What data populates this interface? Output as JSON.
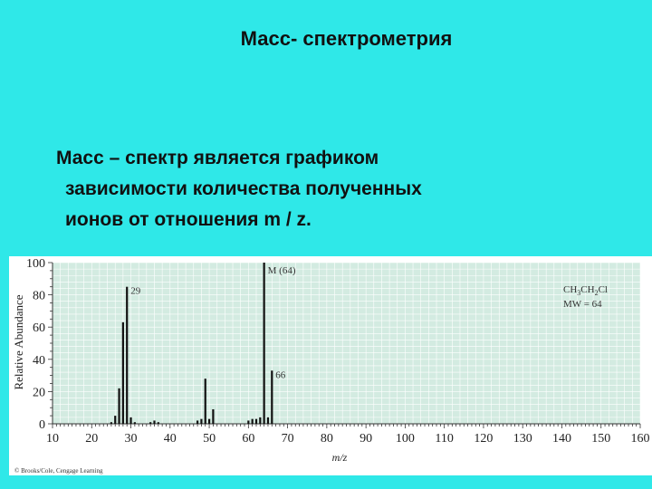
{
  "slide": {
    "title": "Масс- спектрометрия",
    "text_lines": [
      "Масс – спектр является графиком",
      "зависимости количества полученных",
      "ионов от отношения   m / z."
    ]
  },
  "colors": {
    "slide_background": "#2fe8e8",
    "plot_background": "#d3ebe1",
    "bars": "#111111"
  },
  "chart_data": {
    "type": "bar",
    "ylabel": "Relative Abundance",
    "xlabel": "m/z",
    "xlim": [
      10,
      160
    ],
    "ylim": [
      0,
      100
    ],
    "x_ticks": [
      10,
      20,
      30,
      40,
      50,
      60,
      70,
      80,
      90,
      100,
      110,
      120,
      130,
      140,
      150,
      160
    ],
    "y_ticks": [
      0,
      20,
      40,
      60,
      80,
      100
    ],
    "grid": true,
    "peaks": [
      {
        "x": 25,
        "y": 1
      },
      {
        "x": 26,
        "y": 5
      },
      {
        "x": 27,
        "y": 22
      },
      {
        "x": 28,
        "y": 63
      },
      {
        "x": 29,
        "y": 85
      },
      {
        "x": 30,
        "y": 4
      },
      {
        "x": 31,
        "y": 1
      },
      {
        "x": 35,
        "y": 1
      },
      {
        "x": 36,
        "y": 2
      },
      {
        "x": 37,
        "y": 1
      },
      {
        "x": 47,
        "y": 2
      },
      {
        "x": 48,
        "y": 3
      },
      {
        "x": 49,
        "y": 28
      },
      {
        "x": 50,
        "y": 3
      },
      {
        "x": 51,
        "y": 9
      },
      {
        "x": 60,
        "y": 2
      },
      {
        "x": 61,
        "y": 3
      },
      {
        "x": 62,
        "y": 3
      },
      {
        "x": 63,
        "y": 4
      },
      {
        "x": 64,
        "y": 100
      },
      {
        "x": 65,
        "y": 4
      },
      {
        "x": 66,
        "y": 33
      }
    ],
    "annotations": [
      {
        "text": "M (64)",
        "x": 64,
        "y": 100
      },
      {
        "text": "29",
        "x": 29,
        "y": 85
      },
      {
        "text": "66",
        "x": 66,
        "y": 33
      }
    ],
    "compound": {
      "formula_parts": [
        "CH",
        "3",
        "CH",
        "2",
        "Cl"
      ],
      "mw": "MW = 64"
    },
    "copyright": "© Brooks/Cole, Cengage Learning"
  }
}
